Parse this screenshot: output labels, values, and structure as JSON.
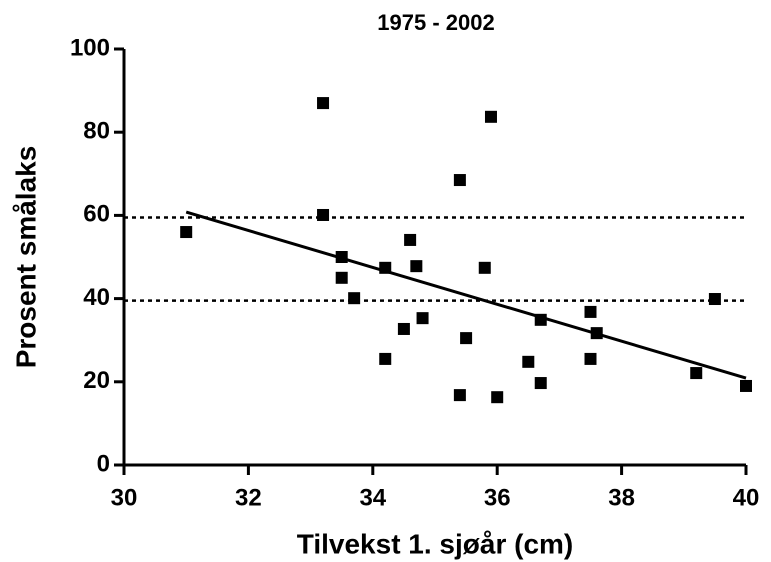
{
  "chart_data": {
    "type": "scatter",
    "title": "1975 - 2002",
    "x_label": "Tilvekst 1. sjøår (cm)",
    "y_label": "Prosent smålaks",
    "x": [
      31.0,
      33.2,
      33.2,
      33.5,
      33.5,
      33.7,
      34.2,
      34.2,
      34.5,
      34.6,
      34.7,
      34.8,
      35.4,
      35.4,
      35.5,
      35.9,
      35.8,
      36.0,
      36.5,
      36.7,
      36.7,
      37.5,
      37.5,
      37.6,
      39.2,
      39.5,
      40.0
    ],
    "values": [
      56.0,
      87.0,
      60.1,
      50.0,
      45.0,
      40.1,
      47.4,
      25.5,
      32.7,
      54.1,
      47.8,
      35.3,
      68.5,
      16.8,
      30.5,
      83.7,
      47.4,
      16.3,
      24.8,
      34.9,
      19.7,
      36.8,
      25.5,
      31.7,
      22.1,
      39.9,
      19.0
    ],
    "color": "#000000",
    "fit": {
      "x": [
        31.0,
        40.0
      ],
      "values": [
        60.8,
        20.9
      ]
    },
    "hlines": [
      59.5,
      39.5
    ],
    "xlim": [
      30,
      40
    ],
    "xticks": [
      30,
      32,
      34,
      36,
      38,
      40
    ],
    "ylim": [
      0,
      100
    ],
    "yticks": [
      0,
      20,
      40,
      60,
      80,
      100
    ]
  }
}
